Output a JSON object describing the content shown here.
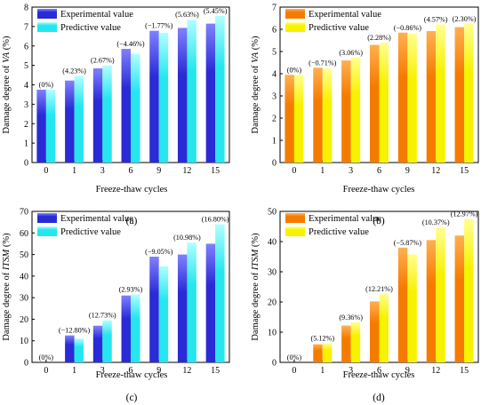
{
  "chart_data": [
    {
      "panel": "(a)",
      "type": "bar",
      "categories": [
        "0",
        "1",
        "3",
        "6",
        "9",
        "12",
        "15"
      ],
      "series": [
        {
          "name": "Experimental value",
          "values": [
            3.75,
            4.22,
            4.85,
            5.85,
            6.78,
            6.93,
            7.15
          ]
        },
        {
          "name": "Predictive value",
          "values": [
            3.75,
            4.45,
            5.0,
            5.6,
            6.68,
            7.35,
            7.55
          ]
        }
      ],
      "annotations": [
        "(0%)",
        "(4.23%)",
        "(2.67%)",
        "(−4.46%)",
        "(−1.77%)",
        "(5.63%)",
        "(5.45%)"
      ],
      "xlabel": "Freeze-thaw cycles",
      "ylabel_pre": "Damage degree of ",
      "ylabel_ital": "VA",
      "ylabel_post": " (%)",
      "ylim": [
        0,
        8
      ],
      "yticks": [
        0,
        1,
        2,
        3,
        4,
        5,
        6,
        7,
        8
      ],
      "legend": "top-left",
      "colors": [
        "#2a2ad6",
        "#25e6ee"
      ],
      "grad_top": [
        "#8080ff",
        "#b0ffff"
      ]
    },
    {
      "panel": "(b)",
      "type": "bar",
      "categories": [
        "0",
        "1",
        "3",
        "6",
        "9",
        "12",
        "15"
      ],
      "series": [
        {
          "name": "Experimental value",
          "values": [
            3.95,
            4.27,
            4.6,
            5.3,
            5.85,
            5.92,
            6.1
          ]
        },
        {
          "name": "Predictive value",
          "values": [
            3.95,
            4.23,
            4.73,
            5.4,
            5.8,
            6.22,
            6.25
          ]
        }
      ],
      "annotations": [
        "(0%)",
        "(−0.71%)",
        "(3.06%)",
        "(2.28%)",
        "(−0.86%)",
        "(4.57%)",
        "(2.30%)"
      ],
      "xlabel": "Freeze-thaw cycles",
      "ylabel_pre": "Damage degree of ",
      "ylabel_ital": "VA",
      "ylabel_post": " (%)",
      "ylim": [
        0,
        7
      ],
      "yticks": [
        0,
        1,
        2,
        3,
        4,
        5,
        6,
        7
      ],
      "legend": "top-left",
      "colors": [
        "#f57b00",
        "#f6f200"
      ],
      "grad_top": [
        "#ffb050",
        "#ffff90"
      ]
    },
    {
      "panel": "(c)",
      "type": "bar",
      "categories": [
        "0",
        "1",
        "3",
        "6",
        "9",
        "12",
        "15"
      ],
      "series": [
        {
          "name": "Experimental value",
          "values": [
            0,
            12.5,
            17.0,
            31.0,
            49.0,
            50.0,
            55.0
          ]
        },
        {
          "name": "Predictive value",
          "values": [
            0,
            11.0,
            19.5,
            31.5,
            44.5,
            55.5,
            64.0
          ]
        }
      ],
      "annotations": [
        "(0%)",
        "(−12.80%)",
        "(12.73%)",
        "(2.93%)",
        "(−9.05%)",
        "(10.98%)",
        "(16.80%)"
      ],
      "xlabel": "Freeze-thaw cycles",
      "ylabel_pre": "Damage degree of ",
      "ylabel_ital": "ITSM",
      "ylabel_post": " (%)",
      "ylim": [
        0,
        70
      ],
      "yticks": [
        0,
        10,
        20,
        30,
        40,
        50,
        60,
        70
      ],
      "legend": "top-left",
      "colors": [
        "#2a2ad6",
        "#25e6ee"
      ],
      "grad_top": [
        "#8080ff",
        "#b0ffff"
      ]
    },
    {
      "panel": "(d)",
      "type": "bar",
      "categories": [
        "0",
        "1",
        "3",
        "6",
        "9",
        "12",
        "15"
      ],
      "series": [
        {
          "name": "Experimental value",
          "values": [
            0,
            6.0,
            12.2,
            20.2,
            38.0,
            40.5,
            42.0
          ]
        },
        {
          "name": "Predictive value",
          "values": [
            0,
            6.3,
            13.3,
            22.7,
            35.8,
            44.7,
            47.5
          ]
        }
      ],
      "annotations": [
        "(0%)",
        "(5.12%)",
        "(9.36%)",
        "(12.21%)",
        "(−5.87%)",
        "(10.37%)",
        "(12.97%)"
      ],
      "xlabel": "Freeze-thaw cycles",
      "ylabel_pre": "Damage degree of ",
      "ylabel_ital": "ITSM",
      "ylabel_post": " (%)",
      "ylim": [
        0,
        50
      ],
      "yticks": [
        0,
        10,
        20,
        30,
        40,
        50
      ],
      "legend": "top-left",
      "colors": [
        "#f57b00",
        "#f6f200"
      ],
      "grad_top": [
        "#ffb050",
        "#ffff90"
      ]
    }
  ]
}
